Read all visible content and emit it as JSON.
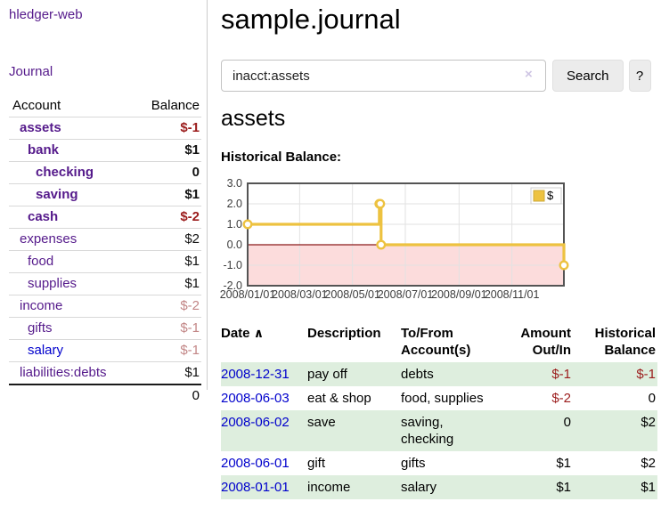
{
  "colors": {
    "accent_purple": "#551a8b",
    "link_blue": "#0000cc",
    "negative_strong": "#9b1c1c",
    "negative_light": "#c28686",
    "row_stripe_green": "#deeede"
  },
  "sidebar": {
    "app_title": "hledger-web",
    "nav": {
      "journal": "Journal"
    },
    "accounts_table": {
      "headers": {
        "account": "Account",
        "balance": "Balance"
      },
      "rows": [
        {
          "name": "assets",
          "balance": "$-1",
          "indent": 0,
          "bold": true,
          "neg": "strong"
        },
        {
          "name": "bank",
          "balance": "$1",
          "indent": 1,
          "bold": true
        },
        {
          "name": "checking",
          "balance": "0",
          "indent": 2,
          "bold": true
        },
        {
          "name": "saving",
          "balance": "$1",
          "indent": 2,
          "bold": true
        },
        {
          "name": "cash",
          "balance": "$-2",
          "indent": 1,
          "bold": true,
          "neg": "strong"
        },
        {
          "name": "expenses",
          "balance": "$2",
          "indent": 0
        },
        {
          "name": "food",
          "balance": "$1",
          "indent": 1
        },
        {
          "name": "supplies",
          "balance": "$1",
          "indent": 1
        },
        {
          "name": "income",
          "balance": "$-2",
          "indent": 0,
          "neg": "light"
        },
        {
          "name": "gifts",
          "balance": "$-1",
          "indent": 1,
          "neg": "light"
        },
        {
          "name": "salary",
          "balance": "$-1",
          "indent": 1,
          "neg": "light",
          "link": "blue"
        },
        {
          "name": "liabilities:debts",
          "balance": "$1",
          "indent": 0
        }
      ],
      "total": "0"
    }
  },
  "header": {
    "title": "sample.journal"
  },
  "search": {
    "value": "inacct:assets",
    "clear_icon": "×",
    "search_button": "Search",
    "help_button": "?"
  },
  "account_page": {
    "heading": "assets",
    "chart_label": "Historical Balance:"
  },
  "chart_data": {
    "type": "line",
    "mode": "steps",
    "title": "Historical Balance:",
    "series": [
      {
        "name": "$",
        "color": "#edc240",
        "x": [
          "2008-01-01",
          "2008-06-01",
          "2008-06-02",
          "2008-06-03",
          "2008-12-31"
        ],
        "values": [
          1,
          2,
          2,
          0,
          -1
        ]
      }
    ],
    "xrange": [
      "2008-01-01",
      "2008-12-31"
    ],
    "ylim": [
      -2,
      3
    ],
    "yticks": [
      "-2.0",
      "-1.0",
      "0.0",
      "1.0",
      "2.0",
      "3.0"
    ],
    "xticks": [
      "2008/01/01",
      "2008/03/01",
      "2008/05/01",
      "2008/07/01",
      "2008/09/01",
      "2008/11/01"
    ],
    "grid": true,
    "legend": {
      "label": "$",
      "position": "top-right"
    },
    "colors": {
      "grid": "#e2e2e2",
      "zero_line": "#8b1a1a",
      "border": "#545454",
      "negative_region": "#fcdcdc",
      "legend_swatch_border": "#cda938"
    }
  },
  "register": {
    "headers": [
      "Date",
      "Description",
      "To/From Account(s)",
      "Amount Out/In",
      "Historical Balance"
    ],
    "sort_icon": "∧",
    "rows": [
      {
        "date": "2008-12-31",
        "description": "pay off",
        "accounts": "debts",
        "amount": "$-1",
        "balance": "$-1",
        "amount_neg": true,
        "balance_neg": true
      },
      {
        "date": "2008-06-03",
        "description": "eat & shop",
        "accounts": "food, supplies",
        "amount": "$-2",
        "balance": "0",
        "amount_neg": true
      },
      {
        "date": "2008-06-02",
        "description": "save",
        "accounts": "saving, checking",
        "amount": "0",
        "balance": "$2"
      },
      {
        "date": "2008-06-01",
        "description": "gift",
        "accounts": "gifts",
        "amount": "$1",
        "balance": "$2"
      },
      {
        "date": "2008-01-01",
        "description": "income",
        "accounts": "salary",
        "amount": "$1",
        "balance": "$1"
      }
    ]
  }
}
